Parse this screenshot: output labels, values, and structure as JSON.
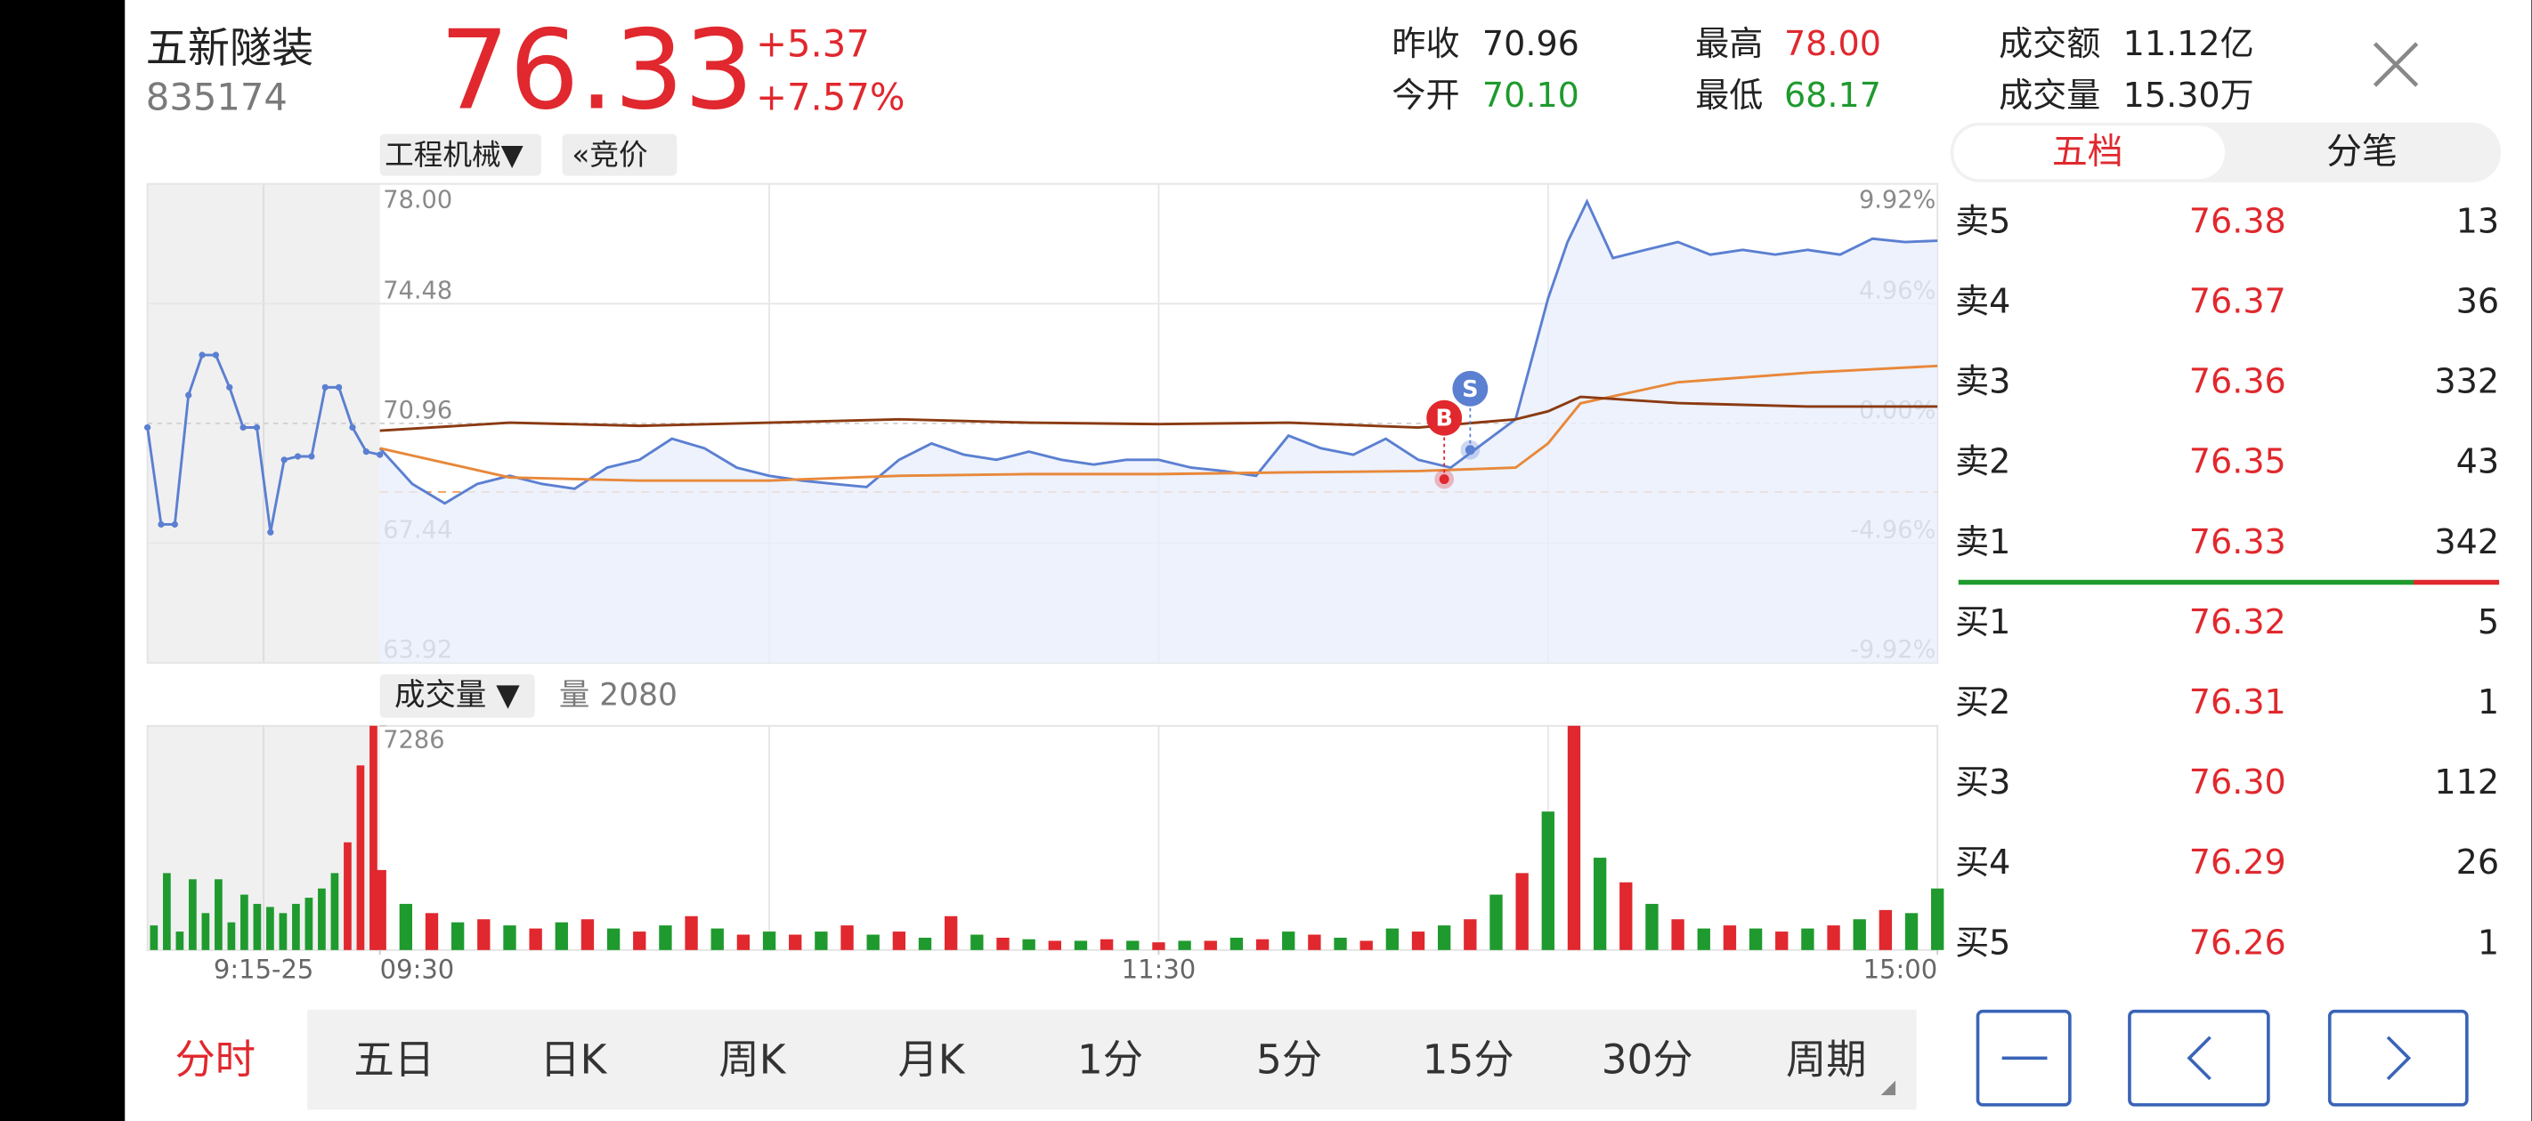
{
  "header": {
    "name": "五新隧装",
    "code": "835174",
    "price": "76.33",
    "change": "+5.37",
    "change_pct": "+7.57%",
    "stats": [
      {
        "label": "昨收",
        "value": "70.96"
      },
      {
        "label": "今开",
        "value": "70.10"
      },
      {
        "label": "最高",
        "value": "78.00"
      },
      {
        "label": "最低",
        "value": "68.17"
      },
      {
        "label": "成交额",
        "value": "11.12亿"
      },
      {
        "label": "成交量",
        "value": "15.30万"
      }
    ]
  },
  "chart_data": [
    {
      "type": "line",
      "sector_label": "工程机械▼",
      "auction_label": "«竞价",
      "xlim": [
        0,
        240
      ],
      "ylim": [
        63.92,
        78.0
      ],
      "yticks": [
        {
          "value": 78,
          "label": "78.00"
        },
        74.48,
        70.96,
        67.44,
        63.92
      ],
      "y2lim": [
        -9.92,
        9.92
      ],
      "y2ticks": [
        {
          "value": 9.92,
          "label": "9.92%"
        },
        {
          "value": 4.96,
          "label": "4.96%"
        },
        {
          "value": 0,
          "label": "0.00%"
        },
        {
          "value": -4.96,
          "label": "-4.96%"
        },
        {
          "value": -9.92,
          "label": "-9.92%"
        }
      ],
      "series": [
        {
          "color": "#5b7fd1",
          "x": [
            0,
            5,
            10,
            15,
            20,
            25,
            30,
            35,
            40,
            45,
            50,
            55,
            60,
            65,
            70,
            75,
            80,
            85,
            90,
            95,
            100,
            105,
            110,
            115,
            120,
            125,
            130,
            135,
            140,
            145,
            150,
            155,
            160,
            165,
            170,
            175,
            180,
            183,
            186,
            190,
            195,
            200,
            205,
            210,
            215,
            220,
            225,
            230,
            235,
            240
          ],
          "values": [
            70.23,
            69.18,
            68.61,
            69.18,
            69.42,
            69.18,
            69.04,
            69.66,
            69.89,
            70.51,
            70.23,
            69.66,
            69.42,
            69.28,
            69.18,
            69.09,
            69.89,
            70.37,
            70.04,
            69.89,
            70.13,
            69.89,
            69.75,
            69.89,
            69.89,
            69.66,
            69.56,
            69.42,
            70.6,
            70.23,
            70.04,
            70.51,
            69.89,
            69.66,
            70.37,
            71.08,
            74.63,
            76.29,
            77.48,
            75.82,
            76.06,
            76.29,
            75.92,
            76.06,
            75.92,
            76.06,
            75.92,
            76.39,
            76.29,
            76.33
          ]
        },
        {
          "color": "#e8883a",
          "x": [
            0,
            20,
            40,
            60,
            80,
            100,
            120,
            140,
            160,
            175,
            180,
            185,
            200,
            220,
            240
          ],
          "values": [
            70.23,
            69.37,
            69.28,
            69.28,
            69.42,
            69.47,
            69.47,
            69.52,
            69.56,
            69.66,
            70.37,
            71.55,
            72.17,
            72.45,
            72.65
          ]
        },
        {
          "color": "#8b3a12",
          "axis": "y2",
          "x": [
            0,
            20,
            40,
            60,
            80,
            100,
            120,
            140,
            160,
            175,
            180,
            185,
            200,
            220,
            240
          ],
          "values": [
            -0.3,
            0.03,
            -0.1,
            0.03,
            0.17,
            0.03,
            -0.03,
            0.03,
            -0.17,
            0.17,
            0.5,
            1.1,
            0.84,
            0.7,
            0.7
          ]
        }
      ],
      "premarket": {
        "color": "#5b7fd1",
        "values": [
          70.84,
          67.99,
          67.99,
          71.79,
          72.97,
          72.97,
          72.02,
          70.84,
          70.84,
          67.76,
          69.89,
          69.99,
          69.99,
          72.02,
          72.02,
          70.84,
          70.13,
          70.04
        ]
      },
      "annotations": [
        {
          "label": "B",
          "x": 164,
          "value": 69.32,
          "color": "#e0282e"
        },
        {
          "label": "S",
          "x": 168,
          "value": 70.18,
          "color": "#5b7fd1"
        }
      ]
    },
    {
      "type": "bar",
      "title": "成交量 ▼",
      "subtitle": "量 2080",
      "xlim": [
        0,
        240
      ],
      "ylim": [
        0,
        7286
      ],
      "yticks": [
        7286
      ],
      "xticks": [
        {
          "value": 0,
          "label": "09:30"
        },
        {
          "value": 120,
          "label": "11:30"
        },
        {
          "value": 240,
          "label": "15:00"
        }
      ],
      "premarket_label": "9:15-25",
      "x": [
        0,
        4,
        8,
        12,
        16,
        20,
        24,
        28,
        32,
        36,
        40,
        44,
        48,
        52,
        56,
        60,
        64,
        68,
        72,
        76,
        80,
        84,
        88,
        92,
        96,
        100,
        104,
        108,
        112,
        116,
        120,
        124,
        128,
        132,
        136,
        140,
        144,
        148,
        152,
        156,
        160,
        164,
        168,
        172,
        176,
        180,
        184,
        188,
        192,
        196,
        200,
        204,
        208,
        212,
        216,
        220,
        224,
        228,
        232,
        236,
        240
      ],
      "values": [
        2600,
        1500,
        1200,
        900,
        1000,
        800,
        700,
        900,
        1000,
        700,
        600,
        800,
        1100,
        700,
        500,
        600,
        500,
        600,
        800,
        500,
        600,
        400,
        1100,
        500,
        400,
        350,
        300,
        300,
        350,
        300,
        250,
        300,
        300,
        400,
        350,
        600,
        500,
        400,
        300,
        700,
        600,
        800,
        1000,
        1800,
        2500,
        4500,
        7286,
        3000,
        2200,
        1500,
        1000,
        700,
        800,
        700,
        600,
        700,
        800,
        1000,
        1300,
        1200,
        2000
      ],
      "colors": [
        "#e0282e",
        "#1f9a2e",
        "#e0282e",
        "#1f9a2e",
        "#e0282e",
        "#1f9a2e",
        "#e0282e",
        "#1f9a2e",
        "#e0282e",
        "#1f9a2e",
        "#e0282e",
        "#1f9a2e",
        "#e0282e",
        "#1f9a2e",
        "#e0282e",
        "#1f9a2e",
        "#e0282e",
        "#1f9a2e",
        "#e0282e",
        "#1f9a2e",
        "#e0282e",
        "#1f9a2e",
        "#e0282e",
        "#1f9a2e",
        "#e0282e",
        "#1f9a2e",
        "#e0282e",
        "#1f9a2e",
        "#e0282e",
        "#1f9a2e",
        "#e0282e",
        "#1f9a2e",
        "#e0282e",
        "#1f9a2e",
        "#e0282e",
        "#1f9a2e",
        "#e0282e",
        "#1f9a2e",
        "#e0282e",
        "#1f9a2e",
        "#e0282e",
        "#1f9a2e",
        "#e0282e",
        "#1f9a2e",
        "#e0282e",
        "#1f9a2e",
        "#e0282e",
        "#1f9a2e",
        "#e0282e",
        "#1f9a2e",
        "#e0282e",
        "#1f9a2e",
        "#e0282e",
        "#1f9a2e",
        "#e0282e",
        "#1f9a2e",
        "#e0282e",
        "#1f9a2e",
        "#e0282e",
        "#1f9a2e",
        "#1f9a2e"
      ],
      "premarket_values": [
        800,
        2500,
        600,
        2300,
        1200,
        2300,
        900,
        1800,
        1500,
        1400,
        1200,
        1500,
        1700,
        2000,
        2500,
        3500,
        6000,
        7286
      ],
      "premarket_colors": [
        "#1f9a2e",
        "#1f9a2e",
        "#1f9a2e",
        "#1f9a2e",
        "#1f9a2e",
        "#1f9a2e",
        "#1f9a2e",
        "#1f9a2e",
        "#1f9a2e",
        "#1f9a2e",
        "#1f9a2e",
        "#1f9a2e",
        "#1f9a2e",
        "#1f9a2e",
        "#1f9a2e",
        "#e0282e",
        "#e0282e",
        "#e0282e"
      ]
    }
  ],
  "order_book": {
    "tabs": [
      "五档",
      "分笔"
    ],
    "asks": [
      {
        "label": "卖5",
        "price": "76.38",
        "volume": "13"
      },
      {
        "label": "卖4",
        "price": "76.37",
        "volume": "36"
      },
      {
        "label": "卖3",
        "price": "76.36",
        "volume": "332"
      },
      {
        "label": "卖2",
        "price": "76.35",
        "volume": "43"
      },
      {
        "label": "卖1",
        "price": "76.33",
        "volume": "342"
      }
    ],
    "bids": [
      {
        "label": "买1",
        "price": "76.32",
        "volume": "5"
      },
      {
        "label": "买2",
        "price": "76.31",
        "volume": "1"
      },
      {
        "label": "买3",
        "price": "76.30",
        "volume": "112"
      },
      {
        "label": "买4",
        "price": "76.29",
        "volume": "26"
      },
      {
        "label": "买5",
        "price": "76.26",
        "volume": "1"
      }
    ]
  },
  "period_tabs": [
    "分时",
    "五日",
    "日K",
    "周K",
    "月K",
    "1分",
    "5分",
    "15分",
    "30分",
    "周期"
  ]
}
